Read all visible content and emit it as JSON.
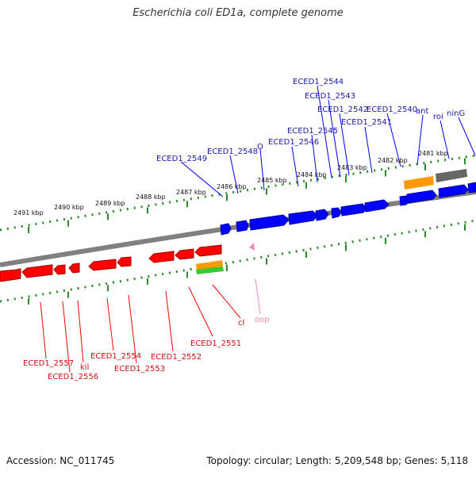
{
  "title": "Escherichia coli ED1a, complete genome",
  "footer": {
    "accession": "Accession: NC_011745",
    "summary": "Topology: circular; Length: 5,209,548 bp; Genes: 5,118"
  },
  "colors": {
    "forward_gene": "#0000ff",
    "reverse_gene": "#ff0000",
    "forward_label": "#1a1aa6",
    "reverse_label": "#cc1111",
    "misc_label": "#ee88bb",
    "backbone": "#808080",
    "ticks": "#2a8a2a",
    "orange_feature": "#ff9900",
    "gray_feature": "#666666",
    "green_feature": "#33cc33"
  },
  "scale_labels": [
    "2491 kbp",
    "2490 kbp",
    "2489 kbp",
    "2488 kbp",
    "2487 kbp",
    "2486 kbp",
    "2485 kbp",
    "2484 kbp",
    "2483 kbp",
    "2482 kbp",
    "2481 kbp"
  ],
  "forward_labels": [
    "ECED1_2544",
    "ECED1_2543",
    "ECED1_2542",
    "ECED1_2540",
    "ant",
    "roi",
    "ninG",
    "ECED1_2541",
    "ECED1_2545",
    "ECED1_2546",
    "O",
    "ECED1_2548",
    "ECED1_2549"
  ],
  "reverse_labels": [
    "ECED1_2557",
    "ECED1_2556",
    "kil",
    "ECED1_2554",
    "ECED1_2553",
    "ECED1_2552",
    "ECED1_2551",
    "cI",
    "oop"
  ]
}
